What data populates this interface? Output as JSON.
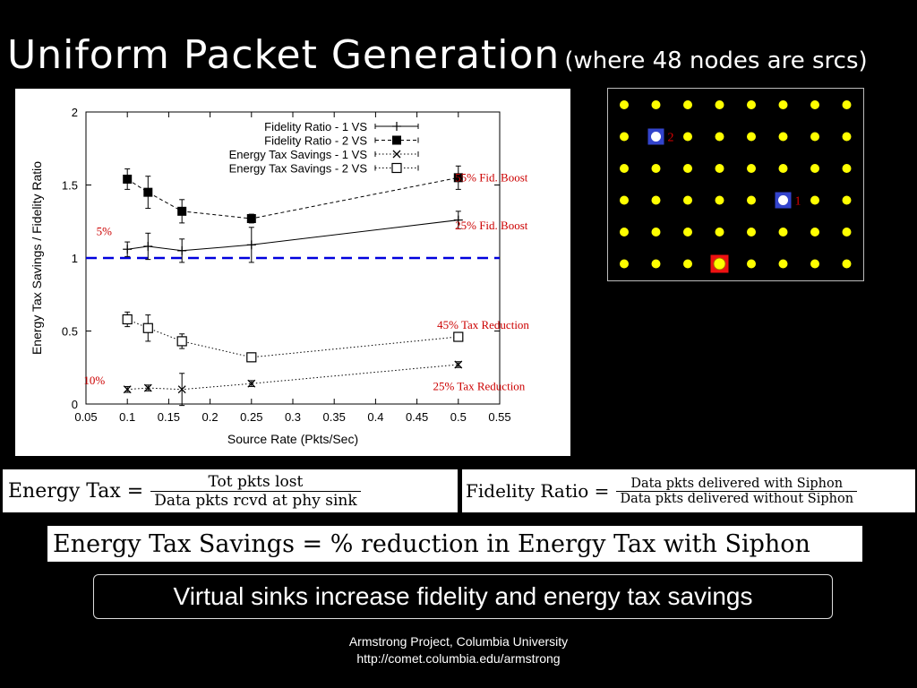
{
  "slide": {
    "title": "Uniform Packet Generation",
    "subtitle": "(where 48 nodes are srcs)",
    "conclusion": "Virtual sinks increase fidelity and energy tax savings",
    "footer_line1": "Armstrong Project, Columbia University",
    "footer_line2": "http://comet.columbia.edu/armstrong"
  },
  "formulas": {
    "energy_tax": {
      "lhs": "Energy Tax =",
      "numerator": "Tot pkts lost",
      "denominator": "Data pkts rcvd at phy sink"
    },
    "fidelity_ratio": {
      "lhs": "Fidelity Ratio =",
      "numerator": "Data pkts delivered with Siphon",
      "denominator": "Data pkts delivered without Siphon"
    },
    "energy_tax_savings": "Energy Tax Savings = % reduction in Energy Tax with Siphon"
  },
  "chart_data": {
    "type": "line",
    "xlabel": "Source Rate (Pkts/Sec)",
    "ylabel": "Energy Tax Savings / Fidelity Ratio",
    "xlim": [
      0.05,
      0.55
    ],
    "ylim": [
      0,
      2
    ],
    "xticks": [
      "0.05",
      "0.1",
      "0.15",
      "0.2",
      "0.25",
      "0.3",
      "0.35",
      "0.4",
      "0.45",
      "0.5",
      "0.55"
    ],
    "yticks": [
      "0",
      "0.5",
      "1",
      "1.5",
      "2"
    ],
    "legend_position": "top-right",
    "reference_line": {
      "y": 1,
      "color": "#0000dd"
    },
    "series": [
      {
        "name": "Fidelity Ratio - 1 VS",
        "marker": "plus",
        "line": "solid",
        "x": [
          0.1,
          0.125,
          0.166,
          0.25,
          0.5
        ],
        "y": [
          1.06,
          1.08,
          1.05,
          1.09,
          1.26
        ],
        "err": [
          0.05,
          0.09,
          0.08,
          0.12,
          0.06
        ]
      },
      {
        "name": "Fidelity Ratio - 2 VS",
        "marker": "filled-square",
        "line": "dashed",
        "x": [
          0.1,
          0.125,
          0.166,
          0.25,
          0.5
        ],
        "y": [
          1.54,
          1.45,
          1.32,
          1.27,
          1.55
        ],
        "err": [
          0.07,
          0.11,
          0.08,
          0.03,
          0.08
        ]
      },
      {
        "name": "Energy Tax Savings - 1 VS",
        "marker": "cross",
        "line": "dotted",
        "x": [
          0.1,
          0.125,
          0.166,
          0.25,
          0.5
        ],
        "y": [
          0.1,
          0.11,
          0.1,
          0.14,
          0.27
        ],
        "err": [
          0.02,
          0.02,
          0.11,
          0.02,
          0.02
        ]
      },
      {
        "name": "Energy Tax Savings - 2 VS",
        "marker": "open-square",
        "line": "dotted",
        "x": [
          0.1,
          0.125,
          0.166,
          0.25,
          0.5
        ],
        "y": [
          0.58,
          0.52,
          0.43,
          0.32,
          0.46
        ],
        "err": [
          0.05,
          0.09,
          0.05,
          0.03,
          0.03
        ]
      }
    ],
    "annotations": [
      {
        "text": "55% Fid. Boost",
        "x": 0.54,
        "y": 1.55,
        "color": "#cc0000"
      },
      {
        "text": "25% Fid. Boost",
        "x": 0.54,
        "y": 1.22,
        "color": "#cc0000"
      },
      {
        "text": "5%",
        "x": 0.072,
        "y": 1.18,
        "color": "#cc0000"
      },
      {
        "text": "45% Tax  Reduction",
        "x": 0.53,
        "y": 0.54,
        "color": "#cc0000"
      },
      {
        "text": "10%",
        "x": 0.06,
        "y": 0.16,
        "color": "#cc0000"
      },
      {
        "text": "25% Tax Reduction",
        "x": 0.525,
        "y": 0.12,
        "color": "#cc0000"
      }
    ]
  },
  "topology": {
    "rows": 6,
    "cols": 8,
    "node_color": "#ffff00",
    "special_nodes": [
      {
        "row": 1,
        "col": 1,
        "label": "2",
        "kind": "virtual-sink"
      },
      {
        "row": 3,
        "col": 5,
        "label": "1",
        "kind": "virtual-sink"
      },
      {
        "row": 5,
        "col": 3,
        "label": "",
        "kind": "physical-sink"
      }
    ]
  }
}
